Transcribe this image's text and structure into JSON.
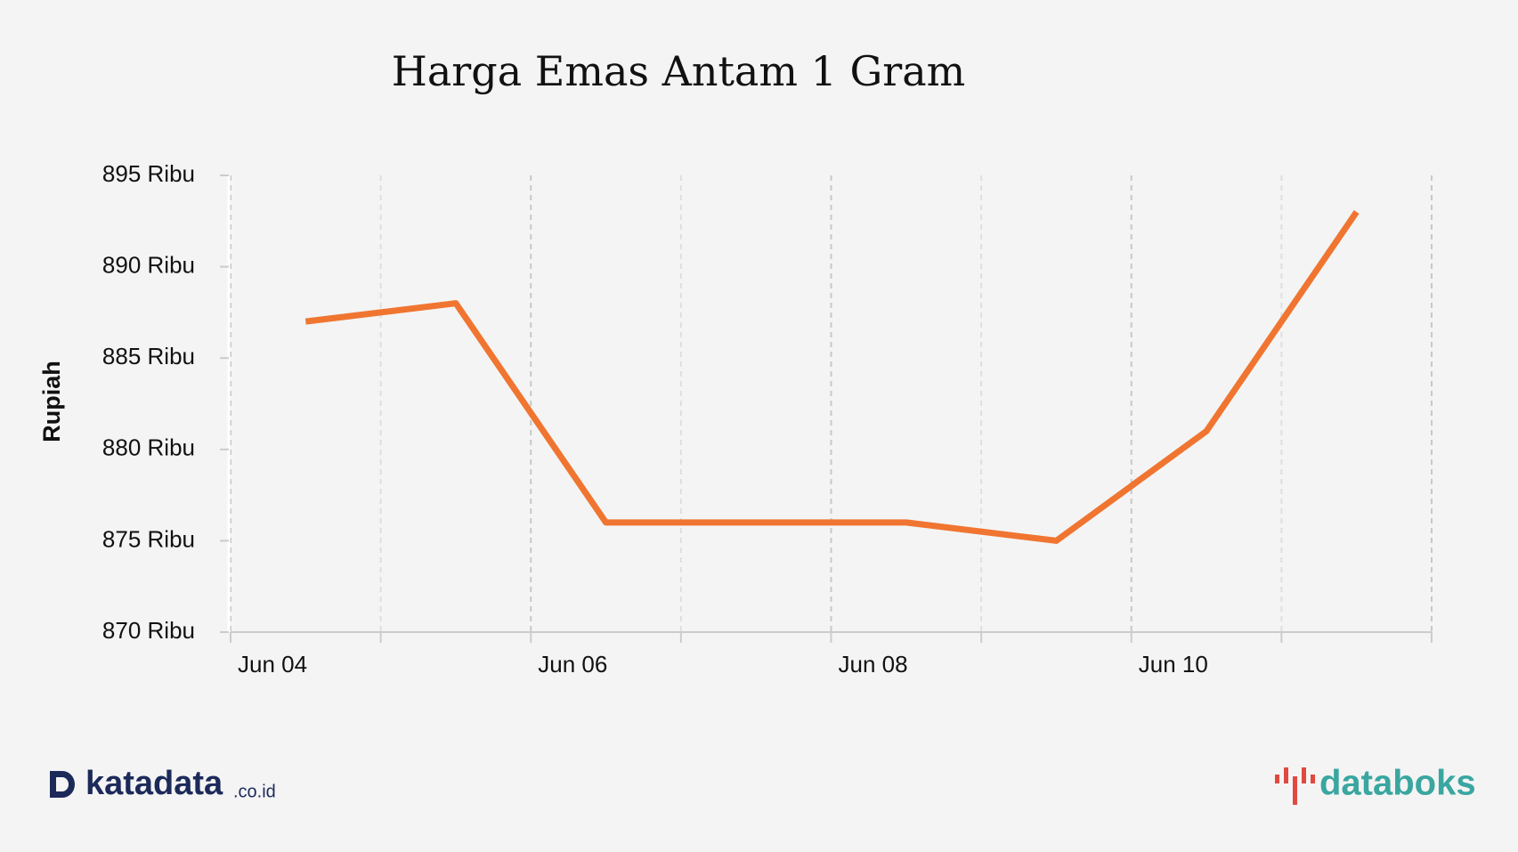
{
  "chart_data": {
    "type": "line",
    "title": "Harga Emas Antam 1 Gram",
    "y_label": "Rupiah",
    "categories": [
      "Jun 04",
      null,
      "Jun 06",
      null,
      "Jun 08",
      null,
      "Jun 10",
      null
    ],
    "series": [
      {
        "name": "Harga Emas Antam 1 Gram",
        "color": "#f07530",
        "values": [
          887,
          888,
          876,
          876,
          876,
          875,
          881,
          893
        ]
      }
    ],
    "ylim": [
      870,
      895
    ],
    "yticks": [
      {
        "value": 870,
        "label": "870 Ribu"
      },
      {
        "value": 875,
        "label": "875 Ribu"
      },
      {
        "value": 880,
        "label": "880 Ribu"
      },
      {
        "value": 885,
        "label": "885 Ribu"
      },
      {
        "value": 890,
        "label": "890 Ribu"
      },
      {
        "value": 895,
        "label": "895 Ribu"
      }
    ],
    "grid": true
  },
  "branding": {
    "left": "katadata",
    "left_suffix": ".co.id",
    "right": "databoks"
  }
}
